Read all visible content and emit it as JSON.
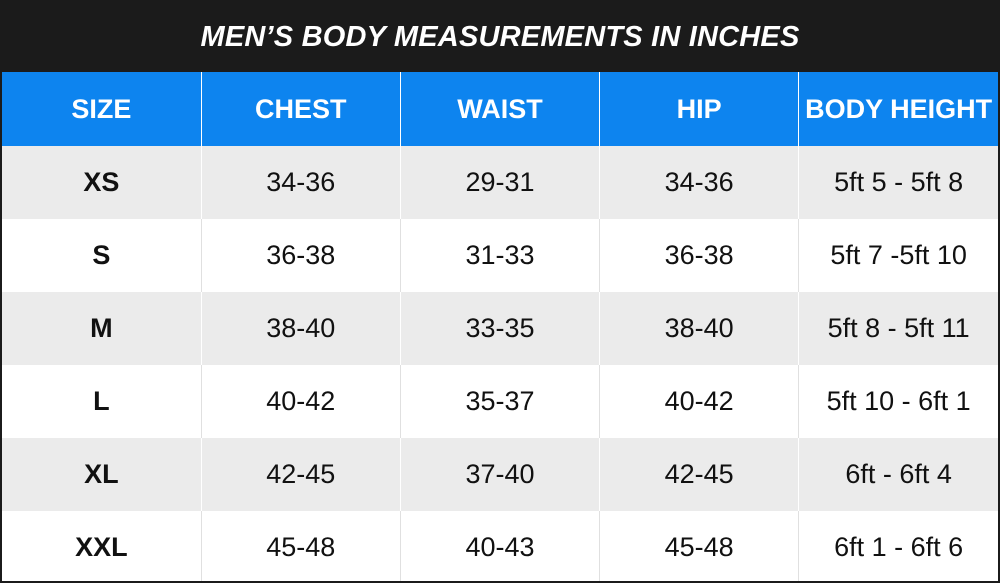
{
  "title": "MEN’S BODY MEASUREMENTS IN INCHES",
  "colors": {
    "header_bg": "#1b1b1b",
    "column_header_bg": "#0d84ef",
    "stripe": "#ebebeb"
  },
  "columns": [
    "SIZE",
    "CHEST",
    "WAIST",
    "HIP",
    "BODY HEIGHT"
  ],
  "rows": [
    [
      "XS",
      "34-36",
      "29-31",
      "34-36",
      "5ft 5 - 5ft 8"
    ],
    [
      "S",
      "36-38",
      "31-33",
      "36-38",
      "5ft 7 -5ft 10"
    ],
    [
      "M",
      "38-40",
      "33-35",
      "38-40",
      "5ft 8 - 5ft 11"
    ],
    [
      "L",
      "40-42",
      "35-37",
      "40-42",
      "5ft 10 - 6ft 1"
    ],
    [
      "XL",
      "42-45",
      "37-40",
      "42-45",
      "6ft - 6ft 4"
    ],
    [
      "XXL",
      "45-48",
      "40-43",
      "45-48",
      "6ft 1 - 6ft 6"
    ]
  ]
}
